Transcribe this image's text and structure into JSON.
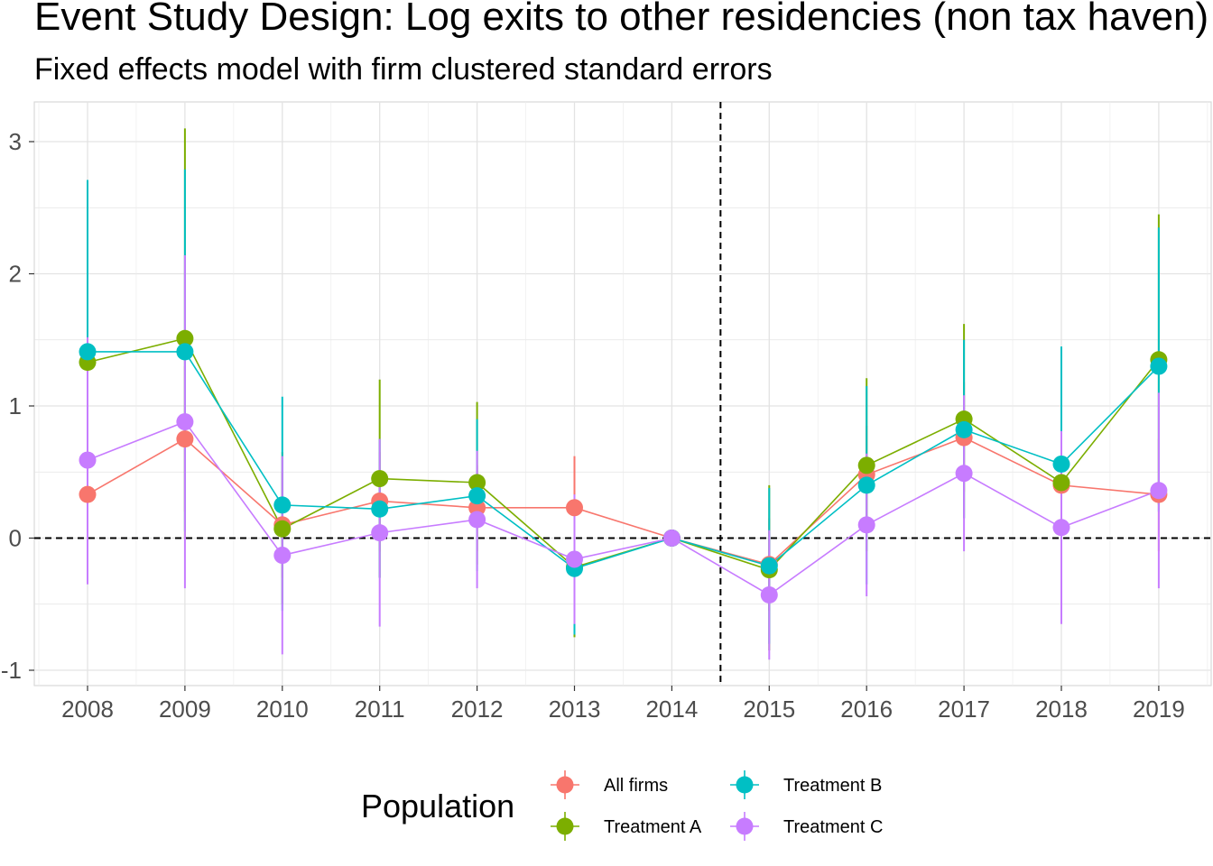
{
  "title": "Event Study Design: Log exits to other residencies (non tax haven)",
  "subtitle": "Fixed effects model with firm clustered standard errors",
  "chart_data": {
    "type": "line",
    "title": "Event Study Design: Log exits to other residencies (non tax haven)",
    "subtitle": "Fixed effects model with firm clustered standard errors",
    "xlabel": "",
    "ylabel": "",
    "x": [
      "2008",
      "2009",
      "2010",
      "2011",
      "2012",
      "2013",
      "2014",
      "2015",
      "2016",
      "2017",
      "2018",
      "2019"
    ],
    "ylim": [
      -1.1,
      3.3
    ],
    "yticks": [
      -1,
      0,
      1,
      2,
      3
    ],
    "hline": 0,
    "vline_between": [
      "2014",
      "2015"
    ],
    "grid": true,
    "legend": {
      "title": "Population",
      "position": "bottom"
    },
    "series": [
      {
        "name": "All firms",
        "color": "#F8766D",
        "values": [
          0.33,
          0.75,
          0.1,
          0.28,
          0.23,
          0.23,
          0.0,
          -0.2,
          0.48,
          0.76,
          0.4,
          0.33
        ],
        "lower": [
          -0.05,
          0.2,
          -0.3,
          -0.1,
          -0.1,
          -0.15,
          0.0,
          -0.55,
          0.1,
          0.35,
          -0.05,
          -0.1
        ],
        "upper": [
          0.7,
          1.3,
          0.5,
          0.65,
          0.55,
          0.62,
          0.0,
          0.15,
          0.85,
          1.18,
          0.85,
          0.75
        ]
      },
      {
        "name": "Treatment A",
        "color": "#7CAE00",
        "values": [
          1.33,
          1.51,
          0.07,
          0.45,
          0.42,
          -0.22,
          0.0,
          -0.24,
          0.55,
          0.9,
          0.42,
          1.35
        ],
        "lower": [
          0.05,
          0.0,
          -0.5,
          -0.3,
          -0.2,
          -0.75,
          0.0,
          -0.85,
          -0.1,
          0.15,
          -0.35,
          0.25
        ],
        "upper": [
          2.6,
          3.1,
          0.65,
          1.2,
          1.03,
          0.3,
          0.0,
          0.4,
          1.21,
          1.62,
          1.2,
          2.45
        ]
      },
      {
        "name": "Treatment B",
        "color": "#00BFC4",
        "values": [
          1.41,
          1.41,
          0.25,
          0.22,
          0.32,
          -0.23,
          0.0,
          -0.21,
          0.4,
          0.82,
          0.56,
          1.3
        ],
        "lower": [
          0.1,
          0.05,
          -0.55,
          -0.3,
          -0.25,
          -0.73,
          0.0,
          -0.8,
          -0.35,
          0.15,
          -0.32,
          0.2
        ],
        "upper": [
          2.71,
          2.79,
          1.07,
          0.75,
          0.9,
          0.28,
          0.0,
          0.38,
          1.15,
          1.5,
          1.45,
          2.35
        ]
      },
      {
        "name": "Treatment C",
        "color": "#C77CFF",
        "values": [
          0.59,
          0.88,
          -0.13,
          0.04,
          0.14,
          -0.16,
          0.0,
          -0.43,
          0.1,
          0.49,
          0.08,
          0.36
        ],
        "lower": [
          -0.35,
          -0.38,
          -0.88,
          -0.67,
          -0.38,
          -0.65,
          0.0,
          -0.92,
          -0.44,
          -0.1,
          -0.65,
          -0.38
        ],
        "upper": [
          1.52,
          2.14,
          0.62,
          0.75,
          0.66,
          0.33,
          0.0,
          0.06,
          0.64,
          1.08,
          0.81,
          1.1
        ]
      }
    ]
  }
}
